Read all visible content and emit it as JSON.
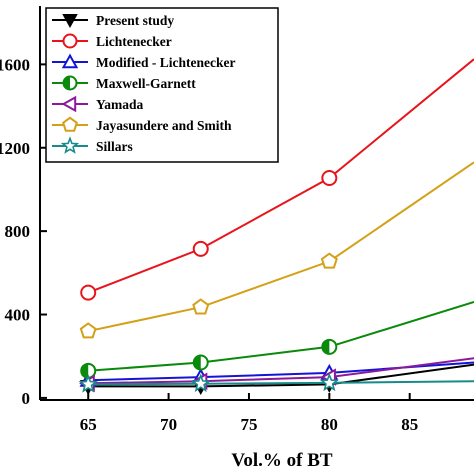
{
  "chart_data": {
    "type": "line",
    "title": "",
    "xlabel": "Vol.% of BT",
    "ylabel": "",
    "xlim": [
      62,
      89
    ],
    "ylim": [
      -10,
      1880
    ],
    "x_ticks": [
      65,
      70,
      75,
      80,
      85
    ],
    "y_ticks": [
      0,
      400,
      800,
      1200,
      1600
    ],
    "y_tick_labels": [
      "0",
      "400",
      "800",
      "1200",
      "1600"
    ],
    "legend_placement": "top-left",
    "series": [
      {
        "name": "Present study",
        "color": "#000000",
        "marker": "triangle-down",
        "x": [
          65,
          72,
          80,
          89
        ],
        "y": [
          55,
          55,
          65,
          160
        ]
      },
      {
        "name": "Lichtenecker",
        "color": "#e8141c",
        "marker": "circle",
        "x": [
          65,
          72,
          80,
          89
        ],
        "y": [
          505,
          715,
          1055,
          1625
        ]
      },
      {
        "name": "Modified - Lichtenecker",
        "color": "#1414d8",
        "marker": "triangle-up",
        "x": [
          65,
          72,
          80,
          89
        ],
        "y": [
          85,
          100,
          120,
          170
        ]
      },
      {
        "name": "Maxwell-Garnett",
        "color": "#0a8a0a",
        "marker": "half-circle",
        "x": [
          65,
          72,
          80,
          89
        ],
        "y": [
          130,
          170,
          245,
          460
        ]
      },
      {
        "name": "Yamada",
        "color": "#8b1a9b",
        "marker": "triangle-left",
        "x": [
          65,
          72,
          80,
          89
        ],
        "y": [
          70,
          80,
          100,
          190
        ]
      },
      {
        "name": "Jayasundere and Smith",
        "color": "#d4a017",
        "marker": "pentagon",
        "x": [
          65,
          72,
          80,
          89
        ],
        "y": [
          320,
          435,
          655,
          1130
        ]
      },
      {
        "name": "Sillars",
        "color": "#178a8a",
        "marker": "star",
        "x": [
          65,
          72,
          80,
          89
        ],
        "y": [
          65,
          68,
          72,
          80
        ]
      }
    ]
  }
}
